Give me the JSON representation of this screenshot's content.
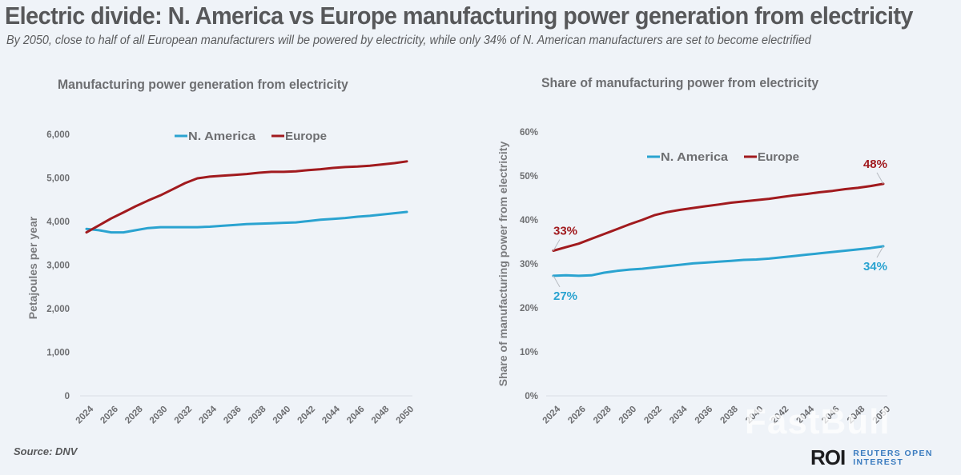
{
  "header": {
    "title": "Electric divide: N. America vs Europe manufacturing power generation from electricity",
    "subtitle": "By 2050, close to half of all European manufacturers will be powered by electricity, while only 34% of N. American manufacturers are set to become electrified"
  },
  "colors": {
    "n_america": "#2aa3d0",
    "europe": "#a11a1e",
    "axis_text": "#6d6e71",
    "baseline": "#d9dde3",
    "background": "#eff3f8"
  },
  "chart_data": [
    {
      "type": "line",
      "title": "Manufacturing power generation from electricity",
      "xlabel": "",
      "ylabel": "Petajoules per year",
      "xlim": [
        2024,
        2050
      ],
      "ylim": [
        0,
        6000
      ],
      "yticks": [
        0,
        1000,
        2000,
        3000,
        4000,
        5000,
        6000
      ],
      "ytick_labels": [
        "0",
        "1,000",
        "2,000",
        "3,000",
        "4,000",
        "5,000",
        "6,000"
      ],
      "xtick_labels": [
        "2024",
        "2026",
        "2028",
        "2030",
        "2032",
        "2034",
        "2036",
        "2038",
        "2040",
        "2042",
        "2044",
        "2046",
        "2048",
        "2050"
      ],
      "grid": false,
      "legend": "top-center",
      "x": [
        2024,
        2025,
        2026,
        2027,
        2028,
        2029,
        2030,
        2031,
        2032,
        2033,
        2034,
        2035,
        2036,
        2037,
        2038,
        2039,
        2040,
        2041,
        2042,
        2043,
        2044,
        2045,
        2046,
        2047,
        2048,
        2049,
        2050
      ],
      "series": [
        {
          "name": "N. America",
          "color_key": "n_america",
          "values": [
            3830,
            3800,
            3750,
            3750,
            3800,
            3850,
            3870,
            3870,
            3870,
            3870,
            3880,
            3900,
            3920,
            3940,
            3950,
            3960,
            3970,
            3980,
            4010,
            4040,
            4060,
            4080,
            4110,
            4130,
            4160,
            4190,
            4220
          ]
        },
        {
          "name": "Europe",
          "color_key": "europe",
          "values": [
            3750,
            3910,
            4070,
            4210,
            4350,
            4480,
            4600,
            4740,
            4880,
            4990,
            5030,
            5050,
            5070,
            5090,
            5120,
            5140,
            5140,
            5150,
            5180,
            5200,
            5230,
            5250,
            5260,
            5280,
            5310,
            5340,
            5380
          ]
        }
      ],
      "annotations": []
    },
    {
      "type": "line",
      "title": "Share of manufacturing power from electricity",
      "xlabel": "",
      "ylabel": "Share of manufacturing power  from electricity",
      "xlim": [
        2024,
        2050
      ],
      "ylim": [
        0,
        60
      ],
      "yticks": [
        0,
        10,
        20,
        30,
        40,
        50,
        60
      ],
      "ytick_labels": [
        "0%",
        "10%",
        "20%",
        "30%",
        "40%",
        "50%",
        "60%"
      ],
      "xtick_labels": [
        "2024",
        "2026",
        "2028",
        "2030",
        "2032",
        "2034",
        "2036",
        "2038",
        "2040",
        "2042",
        "2044",
        "2046",
        "2048",
        "2050"
      ],
      "grid": false,
      "legend": "top-center",
      "x": [
        2024,
        2025,
        2026,
        2027,
        2028,
        2029,
        2030,
        2031,
        2032,
        2033,
        2034,
        2035,
        2036,
        2037,
        2038,
        2039,
        2040,
        2041,
        2042,
        2043,
        2044,
        2045,
        2046,
        2047,
        2048,
        2049,
        2050
      ],
      "series": [
        {
          "name": "N. America",
          "color_key": "n_america",
          "values": [
            27.3,
            27.4,
            27.3,
            27.4,
            28.0,
            28.4,
            28.7,
            28.9,
            29.2,
            29.5,
            29.8,
            30.1,
            30.3,
            30.5,
            30.7,
            30.9,
            31.0,
            31.2,
            31.5,
            31.8,
            32.1,
            32.4,
            32.7,
            33.0,
            33.3,
            33.6,
            34.0
          ]
        },
        {
          "name": "Europe",
          "color_key": "europe",
          "values": [
            33.0,
            33.8,
            34.6,
            35.7,
            36.8,
            37.9,
            39.0,
            40.0,
            41.1,
            41.8,
            42.3,
            42.7,
            43.1,
            43.5,
            43.9,
            44.2,
            44.5,
            44.8,
            45.2,
            45.6,
            45.9,
            46.3,
            46.6,
            47.0,
            47.3,
            47.7,
            48.2
          ]
        }
      ],
      "annotations": [
        {
          "series": "Europe",
          "x": 2024,
          "label": "33%",
          "position": "above"
        },
        {
          "series": "Europe",
          "x": 2050,
          "label": "48%",
          "position": "above"
        },
        {
          "series": "N. America",
          "x": 2024,
          "label": "27%",
          "position": "below"
        },
        {
          "series": "N. America",
          "x": 2050,
          "label": "34%",
          "position": "below"
        }
      ]
    }
  ],
  "footer": {
    "source": "Source:  DNV",
    "logo_mark": "ROI",
    "logo_line1": "REUTERS OPEN",
    "logo_line2": "INTEREST",
    "watermark": "FastBull"
  }
}
